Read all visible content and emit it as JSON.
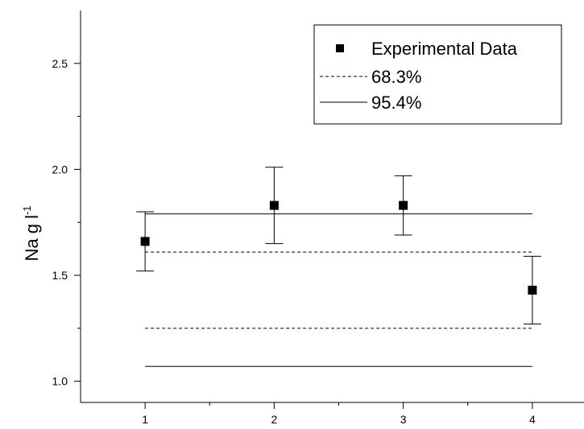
{
  "chart_data": {
    "type": "scatter",
    "ylabel": "Na g l",
    "ylabel_superscript": "-1",
    "xlim": [
      0.5,
      4.4
    ],
    "ylim": [
      0.9,
      2.75
    ],
    "x_ticks": [
      {
        "value": 1,
        "label": "1"
      },
      {
        "value": 2,
        "label": "2"
      },
      {
        "value": 3,
        "label": "3"
      },
      {
        "value": 4,
        "label": "4"
      }
    ],
    "x_minor_ticks": [
      1.5,
      2.5,
      3.5
    ],
    "y_ticks": [
      {
        "value": 1.0,
        "label": "1.0"
      },
      {
        "value": 1.5,
        "label": "1.5"
      },
      {
        "value": 2.0,
        "label": "2.0"
      },
      {
        "value": 2.5,
        "label": "2.5"
      }
    ],
    "y_minor_ticks": [
      1.25,
      1.75,
      2.25
    ],
    "grid": false,
    "legend_position": "top-right",
    "series": [
      {
        "name": "Experimental Data",
        "kind": "points",
        "marker": "square",
        "color": "#000000",
        "x": [
          1,
          2,
          3,
          4
        ],
        "y": [
          1.66,
          1.83,
          1.83,
          1.43
        ],
        "err_low": [
          1.52,
          1.65,
          1.69,
          1.27
        ],
        "err_high": [
          1.8,
          2.01,
          1.97,
          1.59
        ]
      },
      {
        "name": "68.3%",
        "kind": "bounds",
        "dash": "dashed",
        "color": "#000000",
        "x_range": [
          1,
          4
        ],
        "levels": [
          1.61,
          1.25
        ]
      },
      {
        "name": "95.4%",
        "kind": "bounds",
        "dash": "solid",
        "color": "#000000",
        "x_range": [
          1,
          4
        ],
        "levels": [
          1.79,
          1.07
        ]
      }
    ]
  }
}
